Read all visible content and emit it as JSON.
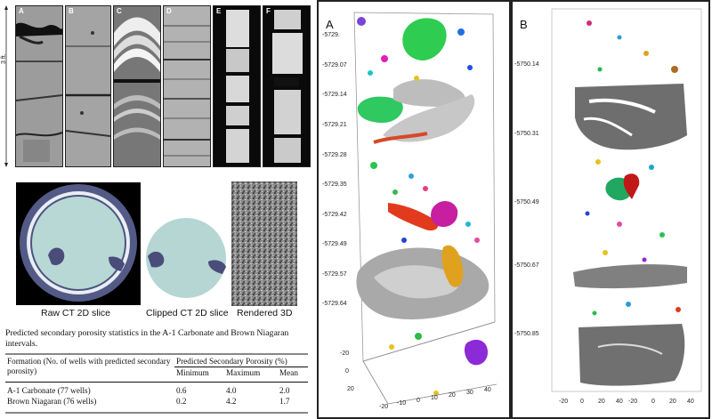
{
  "core_strips": {
    "scale_label": "3 ft.",
    "panels": [
      {
        "letter": "A"
      },
      {
        "letter": "B"
      },
      {
        "letter": "C"
      },
      {
        "letter": "D"
      },
      {
        "letter": "E"
      },
      {
        "letter": "F"
      }
    ]
  },
  "ct_images": {
    "raw_caption": "Raw CT 2D slice",
    "clipped_caption": "Clipped CT 2D slice",
    "rendered_caption": "Rendered 3D"
  },
  "stats_table": {
    "title": "Predicted secondary porosity statistics in the A-1 Carbonate and Brown Niagaran intervals.",
    "col1_header": "Formation (No. of wells with predicted secondary porosity)",
    "group_header": "Predicted Secondary Porosity (%)",
    "sub_headers": [
      "Minimum",
      "Maximum",
      "Mean"
    ],
    "rows": [
      {
        "formation": "A-1 Carbonate (77 wells)",
        "min": "0.6",
        "max": "4.0",
        "mean": "2.0"
      },
      {
        "formation": "Brown Niagaran (76 wells)",
        "min": "0.2",
        "max": "4.2",
        "mean": "1.7"
      }
    ]
  },
  "panel_a": {
    "letter": "A",
    "depth_ticks": [
      "-5729.",
      "-5729.07",
      "-5729.14",
      "-5729.21",
      "-5729.28",
      "-5729.35",
      "-5729.42",
      "-5729.49",
      "-5729.57",
      "-5729.64"
    ],
    "y_ticks": [
      "-20",
      "0",
      "20"
    ],
    "x_ticks": [
      "-20",
      "-10",
      "0",
      "10",
      "20",
      "30",
      "40"
    ]
  },
  "panel_b": {
    "letter": "B",
    "depth_ticks": [
      "-5750.14",
      "-5750.31",
      "-5750.49",
      "-5750.67",
      "-5750.85"
    ],
    "x_ticks": [
      "-20",
      "0",
      "20",
      "40",
      "-20",
      "0",
      "20",
      "40"
    ]
  }
}
